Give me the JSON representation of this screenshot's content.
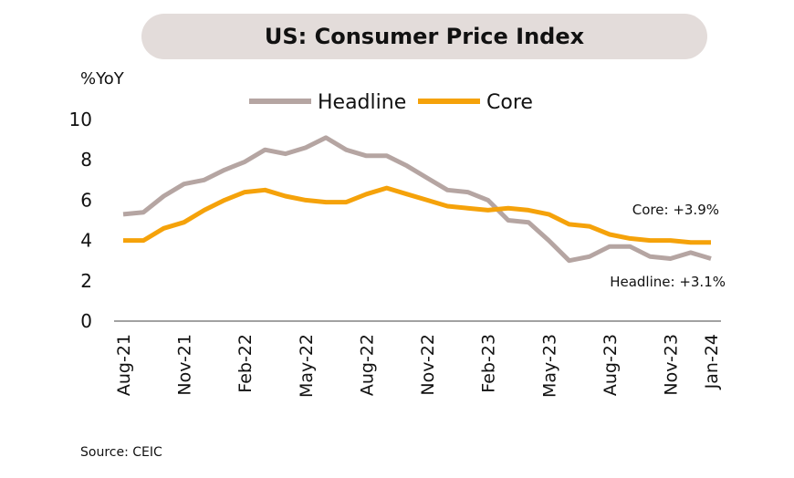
{
  "chart_data": {
    "type": "line",
    "title": "US: Consumer Price Index",
    "ylabel": "%YoY",
    "xlabel": "",
    "ylim": [
      0,
      10
    ],
    "yticks": [
      0,
      2,
      4,
      6,
      8,
      10
    ],
    "grid": false,
    "legend_position": "top",
    "categories": [
      "Aug-21",
      "Sep-21",
      "Oct-21",
      "Nov-21",
      "Dec-21",
      "Jan-22",
      "Feb-22",
      "Mar-22",
      "Apr-22",
      "May-22",
      "Jun-22",
      "Jul-22",
      "Aug-22",
      "Sep-22",
      "Oct-22",
      "Nov-22",
      "Dec-22",
      "Jan-23",
      "Feb-23",
      "Mar-23",
      "Apr-23",
      "May-23",
      "Jun-23",
      "Jul-23",
      "Aug-23",
      "Sep-23",
      "Oct-23",
      "Nov-23",
      "Dec-23",
      "Jan-24"
    ],
    "tick_labels": [
      "Aug-21",
      "Nov-21",
      "Feb-22",
      "May-22",
      "Aug-22",
      "Nov-22",
      "Feb-23",
      "May-23",
      "Aug-23",
      "Nov-23",
      "Jan-24"
    ],
    "series": [
      {
        "name": "Headline",
        "color": "#b5a5a2",
        "values": [
          5.3,
          5.4,
          6.2,
          6.8,
          7.0,
          7.5,
          7.9,
          8.5,
          8.3,
          8.6,
          9.1,
          8.5,
          8.2,
          8.2,
          7.7,
          7.1,
          6.5,
          6.4,
          6.0,
          5.0,
          4.9,
          4.0,
          3.0,
          3.2,
          3.7,
          3.7,
          3.2,
          3.1,
          3.4,
          3.1
        ]
      },
      {
        "name": "Core",
        "color": "#f5a20a",
        "values": [
          4.0,
          4.0,
          4.6,
          4.9,
          5.5,
          6.0,
          6.4,
          6.5,
          6.2,
          6.0,
          5.9,
          5.9,
          6.3,
          6.6,
          6.3,
          6.0,
          5.7,
          5.6,
          5.5,
          5.6,
          5.5,
          5.3,
          4.8,
          4.7,
          4.3,
          4.1,
          4.0,
          4.0,
          3.9,
          3.9
        ]
      }
    ],
    "annotations": [
      {
        "text": "Core: +3.9%",
        "series": "Core"
      },
      {
        "text": "Headline: +3.1%",
        "series": "Headline"
      }
    ],
    "source": "Source: CEIC"
  }
}
